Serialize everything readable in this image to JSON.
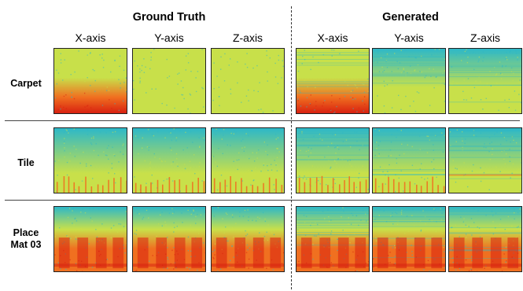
{
  "headers": {
    "ground_truth": "Ground Truth",
    "generated": "Generated"
  },
  "axes": [
    "X-axis",
    "Y-axis",
    "Z-axis"
  ],
  "rows": [
    {
      "label": "Carpet",
      "label_line2": ""
    },
    {
      "label": "Tile",
      "label_line2": ""
    },
    {
      "label": "Place",
      "label_line2": "Mat 03"
    }
  ],
  "colors": {
    "low": "#2db8c8",
    "mid": "#c8e04a",
    "high": "#f07020",
    "peak": "#d82010"
  }
}
